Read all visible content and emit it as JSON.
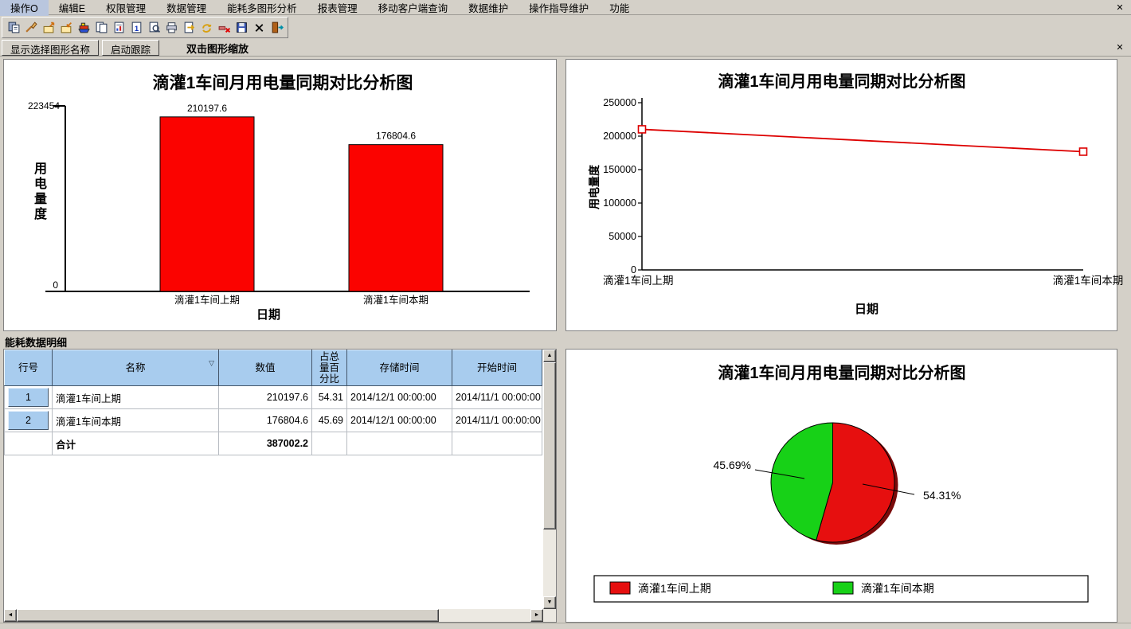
{
  "menu_bar": {
    "items": [
      "操作O",
      "编辑E",
      "权限管理",
      "数据管理",
      "能耗多图形分析",
      "报表管理",
      "移动客户端查询",
      "数据维护",
      "操作指导维护",
      "功能"
    ],
    "close_glyph": "✕"
  },
  "toolbar": {
    "icons": [
      "copy-form",
      "brush",
      "export",
      "import",
      "ship",
      "copy",
      "report-chart",
      "report-one",
      "preview",
      "print",
      "send-to",
      "refresh",
      "delete",
      "save",
      "close",
      "exit"
    ]
  },
  "buttons_row": {
    "show_graph_name_label": "显示选择图形名称",
    "start_tracking_label": "启动跟踪",
    "hint_label": "双击图形缩放",
    "close_glyph": "✕"
  },
  "section_label": "能耗数据明细",
  "colors": {
    "bar_red": "#fb0300",
    "line_red": "#dd0000",
    "pie_red": "#e60f0f",
    "pie_green": "#17d117",
    "pie_rim": "#7a0a0a",
    "header_blue": "#a8ccee",
    "window_grey": "#d4d0c8"
  },
  "chart_data": [
    {
      "id": "bar",
      "type": "bar",
      "title": "滴灌1车间月用电量同期对比分析图",
      "categories": [
        "滴灌1车间上期",
        "滴灌1车间本期"
      ],
      "values": [
        210197.6,
        176804.6
      ],
      "value_labels": [
        "210197.6",
        "176804.6"
      ],
      "ylabel": "用电量度",
      "xlabel": "日期",
      "ylim": [
        0,
        223454
      ],
      "ymax_label": "223454",
      "ymin_label": "0",
      "bar_color": "#fb0300"
    },
    {
      "id": "line",
      "type": "line",
      "title": "滴灌1车间月用电量同期对比分析图",
      "categories": [
        "滴灌1车间上期",
        "滴灌1车间本期"
      ],
      "values": [
        210197.6,
        176804.6
      ],
      "ylabel": "用电量度",
      "xlabel": "日期",
      "ylim": [
        0,
        250000
      ],
      "yticks": [
        "0",
        "50000",
        "100000",
        "150000",
        "200000",
        "250000"
      ],
      "line_color": "#dd0000",
      "marker": "open-square"
    },
    {
      "id": "pie",
      "type": "pie",
      "title": "滴灌1车间月用电量同期对比分析图",
      "slices": [
        {
          "label": "滴灌1车间上期",
          "pct": 54.31,
          "pct_label": "54.31%",
          "color": "#e60f0f"
        },
        {
          "label": "滴灌1车间本期",
          "pct": 45.69,
          "pct_label": "45.69%",
          "color": "#17d117"
        }
      ],
      "legend": [
        "滴灌1车间上期",
        "滴灌1车间本期"
      ],
      "legend_position": "bottom"
    }
  ],
  "table": {
    "columns": [
      "行号",
      "名称",
      "数值",
      "占总量百分比",
      "存储时间",
      "开始时间"
    ],
    "sort_indicator": "▽",
    "rows": [
      {
        "row_no": "1",
        "name": "滴灌1车间上期",
        "value": "210197.6",
        "pct": "54.31",
        "store_time": "2014/12/1 00:00:00",
        "start_time": "2014/11/1 00:00:00"
      },
      {
        "row_no": "2",
        "name": "滴灌1车间本期",
        "value": "176804.6",
        "pct": "45.69",
        "store_time": "2014/12/1 00:00:00",
        "start_time": "2014/11/1 00:00:00"
      }
    ],
    "total_row": {
      "label": "合计",
      "value": "387002.2"
    },
    "scrollbar": {
      "up": "▲",
      "down": "▼",
      "left": "◄",
      "right": "►"
    }
  }
}
